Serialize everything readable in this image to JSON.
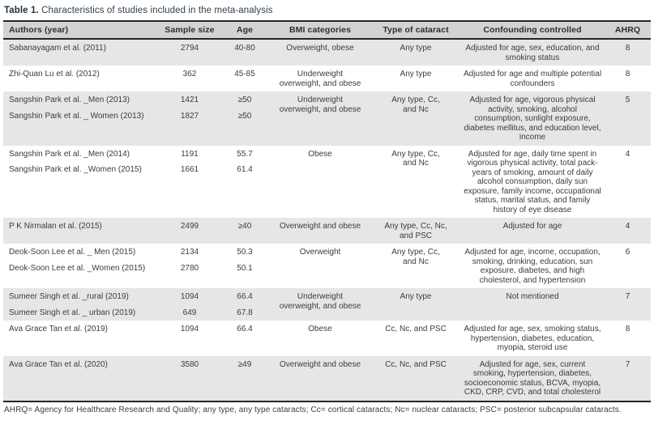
{
  "table": {
    "title_label": "Table 1.",
    "title_text": "Characteristics of studies included in the meta-analysis",
    "columns": [
      "Authors (year)",
      "Sample size",
      "Age",
      "BMI categories",
      "Type of cataract",
      "Confounding controlled",
      "AHRQ"
    ],
    "rows": [
      {
        "shaded": true,
        "authors": [
          "Sabanayagam et al. (2011)"
        ],
        "sample_sizes": [
          "2794"
        ],
        "ages": [
          "40-80"
        ],
        "bmi_categories": "Overweight, obese",
        "cataract_type": "Any type",
        "confounding": "Adjusted for age, sex, education, and smoking status",
        "ahrq": "8"
      },
      {
        "shaded": false,
        "authors": [
          "Zhi-Quan Lu et al. (2012)"
        ],
        "sample_sizes": [
          "362"
        ],
        "ages": [
          "45-85"
        ],
        "bmi_categories": "Underweight\noverweight, and obese",
        "cataract_type": "Any type",
        "confounding": "Adjusted for age and multiple potential confounders",
        "ahrq": "8"
      },
      {
        "shaded": true,
        "authors": [
          "Sangshin Park et al. _Men (2013)",
          "Sangshin Park et al. _ Women (2013)"
        ],
        "sample_sizes": [
          "1421",
          "1827"
        ],
        "ages": [
          "≥50",
          "≥50"
        ],
        "bmi_categories": "Underweight\noverweight, and obese",
        "cataract_type": "Any type, Cc,\nand Nc",
        "confounding": "Adjusted for age, vigorous physical activity, smoking, alcohol consumption, sunlight exposure, diabetes mellitus, and education level, income",
        "ahrq": "5"
      },
      {
        "shaded": false,
        "authors": [
          "Sangshin Park et al. _Men (2014)",
          "Sangshin Park et al. _Women (2015)"
        ],
        "sample_sizes": [
          "1191",
          "1661"
        ],
        "ages": [
          "55.7",
          "61.4"
        ],
        "bmi_categories": "Obese",
        "cataract_type": "Any type, Cc,\nand Nc",
        "confounding": "Adjusted for age, daily time spent in vigorous physical activity, total pack-years of smoking, amount of daily alcohol consumption, daily sun exposure, family income, occupational status, marital status, and family history of eye disease",
        "ahrq": "4"
      },
      {
        "shaded": true,
        "authors": [
          "P K Nirmalan et al. (2015)"
        ],
        "sample_sizes": [
          "2499"
        ],
        "ages": [
          "≥40"
        ],
        "bmi_categories": "Overweight and obese",
        "cataract_type": "Any type, Cc, Nc,\nand PSC",
        "confounding": "Adjusted for age",
        "ahrq": "4"
      },
      {
        "shaded": false,
        "authors": [
          "Deok-Soon Lee et al. _ Men (2015)",
          "Deok-Soon Lee et al. _Women (2015)"
        ],
        "sample_sizes": [
          "2134",
          "2780"
        ],
        "ages": [
          "50.3",
          "50.1"
        ],
        "bmi_categories": "Overweight",
        "cataract_type": "Any type, Cc,\nand Nc",
        "confounding": "Adjusted for age, income, occupation, smoking, drinking, education, sun exposure, diabetes, and high cholesterol, and hypertension",
        "ahrq": "6"
      },
      {
        "shaded": true,
        "authors": [
          "Sumeer Singh et al. _rural (2019)",
          "Sumeer Singh et al. _ urban (2019)"
        ],
        "sample_sizes": [
          "1094",
          "649"
        ],
        "ages": [
          "66.4",
          "67.8"
        ],
        "bmi_categories": "Underweight\noverweight, and obese",
        "cataract_type": "Any type",
        "confounding": "Not mentioned",
        "ahrq": "7"
      },
      {
        "shaded": false,
        "authors": [
          "Ava Grace Tan et al. (2019)"
        ],
        "sample_sizes": [
          "1094"
        ],
        "ages": [
          "66.4"
        ],
        "bmi_categories": "Obese",
        "cataract_type": "Cc, Nc, and PSC",
        "confounding": "Adjusted for age, sex, smoking status, hypertension, diabetes, education, myopia, steroid use",
        "ahrq": "8"
      },
      {
        "shaded": true,
        "authors": [
          "Ava Grace Tan et al. (2020)"
        ],
        "sample_sizes": [
          "3580"
        ],
        "ages": [
          "≥49"
        ],
        "bmi_categories": "Overweight and obese",
        "cataract_type": "Cc, Nc, and PSC",
        "confounding": "Adjusted for age, sex, current smoking, hypertension, diabetes, socioeconomic status, BCVA, myopia, CKD, CRP, CVD, and total cholesterol",
        "ahrq": "7"
      }
    ],
    "footnote": "AHRQ= Agency for Healthcare Research and Quality; any type, any type cataracts; Cc= cortical cataracts; Nc= nuclear cataracts; PSC= posterior subcapsular cataracts."
  }
}
